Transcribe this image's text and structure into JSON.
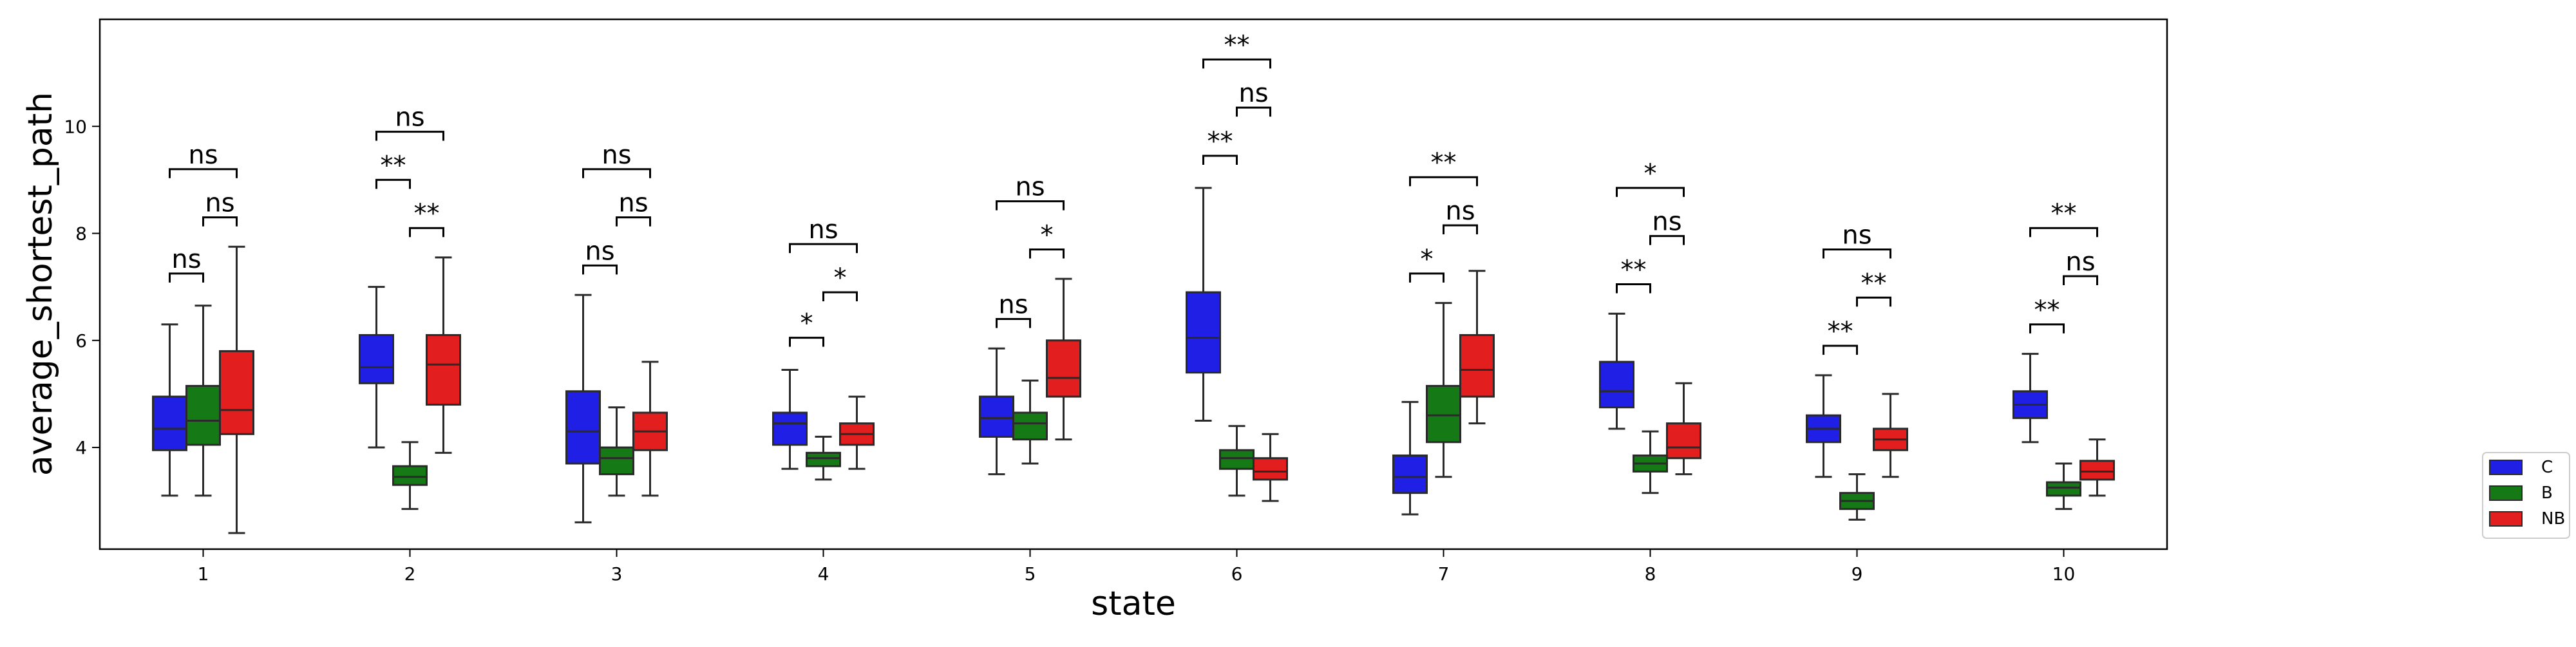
{
  "chart_data": {
    "type": "box",
    "xlabel": "state",
    "ylabel": "average_shortest_path",
    "categories": [
      "1",
      "2",
      "3",
      "4",
      "5",
      "6",
      "7",
      "8",
      "9",
      "10"
    ],
    "y_ticks": [
      4,
      6,
      8,
      10
    ],
    "ylim": [
      2.1,
      12.0
    ],
    "grid": false,
    "legend_position": "right, outside plot",
    "series": [
      {
        "name": "C",
        "color": "#1f1fe6"
      },
      {
        "name": "B",
        "color": "#157a15"
      },
      {
        "name": "NB",
        "color": "#e31e1e"
      }
    ],
    "groups": [
      {
        "state": "1",
        "boxes": [
          {
            "series": "C",
            "whislo": 3.1,
            "q1": 3.95,
            "med": 4.35,
            "q3": 4.95,
            "whishi": 6.3
          },
          {
            "series": "B",
            "whislo": 3.1,
            "q1": 4.05,
            "med": 4.5,
            "q3": 5.15,
            "whishi": 6.65
          },
          {
            "series": "NB",
            "whislo": 2.4,
            "q1": 4.25,
            "med": 4.7,
            "q3": 5.8,
            "whishi": 7.75
          }
        ],
        "annotations": [
          {
            "pair": [
              "C",
              "B"
            ],
            "label": "ns",
            "level": 7.25
          },
          {
            "pair": [
              "B",
              "NB"
            ],
            "label": "ns",
            "level": 8.3
          },
          {
            "pair": [
              "C",
              "NB"
            ],
            "label": "ns",
            "level": 9.2
          }
        ]
      },
      {
        "state": "2",
        "boxes": [
          {
            "series": "C",
            "whislo": 4.0,
            "q1": 5.2,
            "med": 5.5,
            "q3": 6.1,
            "whishi": 7.0
          },
          {
            "series": "B",
            "whislo": 2.85,
            "q1": 3.3,
            "med": 3.45,
            "q3": 3.65,
            "whishi": 4.1
          },
          {
            "series": "NB",
            "whislo": 3.9,
            "q1": 4.8,
            "med": 5.55,
            "q3": 6.1,
            "whishi": 7.55
          }
        ],
        "annotations": [
          {
            "pair": [
              "C",
              "B"
            ],
            "label": "**",
            "level": 9.0
          },
          {
            "pair": [
              "B",
              "NB"
            ],
            "label": "**",
            "level": 8.1
          },
          {
            "pair": [
              "C",
              "NB"
            ],
            "label": "ns",
            "level": 9.9
          }
        ]
      },
      {
        "state": "3",
        "boxes": [
          {
            "series": "C",
            "whislo": 2.6,
            "q1": 3.7,
            "med": 4.3,
            "q3": 5.05,
            "whishi": 6.85
          },
          {
            "series": "B",
            "whislo": 3.1,
            "q1": 3.5,
            "med": 3.8,
            "q3": 4.0,
            "whishi": 4.75
          },
          {
            "series": "NB",
            "whislo": 3.1,
            "q1": 3.95,
            "med": 4.3,
            "q3": 4.65,
            "whishi": 5.6
          }
        ],
        "annotations": [
          {
            "pair": [
              "C",
              "B"
            ],
            "label": "ns",
            "level": 7.4
          },
          {
            "pair": [
              "B",
              "NB"
            ],
            "label": "ns",
            "level": 8.3
          },
          {
            "pair": [
              "C",
              "NB"
            ],
            "label": "ns",
            "level": 9.2
          }
        ]
      },
      {
        "state": "4",
        "boxes": [
          {
            "series": "C",
            "whislo": 3.6,
            "q1": 4.05,
            "med": 4.45,
            "q3": 4.65,
            "whishi": 5.45
          },
          {
            "series": "B",
            "whislo": 3.4,
            "q1": 3.65,
            "med": 3.8,
            "q3": 3.9,
            "whishi": 4.2
          },
          {
            "series": "NB",
            "whislo": 3.6,
            "q1": 4.05,
            "med": 4.25,
            "q3": 4.45,
            "whishi": 4.95
          }
        ],
        "annotations": [
          {
            "pair": [
              "C",
              "B"
            ],
            "label": "*",
            "level": 6.05
          },
          {
            "pair": [
              "B",
              "NB"
            ],
            "label": "*",
            "level": 6.9
          },
          {
            "pair": [
              "C",
              "NB"
            ],
            "label": "ns",
            "level": 7.8
          }
        ]
      },
      {
        "state": "5",
        "boxes": [
          {
            "series": "C",
            "whislo": 3.5,
            "q1": 4.2,
            "med": 4.55,
            "q3": 4.95,
            "whishi": 5.85
          },
          {
            "series": "B",
            "whislo": 3.7,
            "q1": 4.15,
            "med": 4.45,
            "q3": 4.65,
            "whishi": 5.25
          },
          {
            "series": "NB",
            "whislo": 4.15,
            "q1": 4.95,
            "med": 5.3,
            "q3": 6.0,
            "whishi": 7.15
          }
        ],
        "annotations": [
          {
            "pair": [
              "C",
              "B"
            ],
            "label": "ns",
            "level": 6.4
          },
          {
            "pair": [
              "B",
              "NB"
            ],
            "label": "*",
            "level": 7.7
          },
          {
            "pair": [
              "C",
              "NB"
            ],
            "label": "ns",
            "level": 8.6
          }
        ]
      },
      {
        "state": "6",
        "boxes": [
          {
            "series": "C",
            "whislo": 4.5,
            "q1": 5.4,
            "med": 6.05,
            "q3": 6.9,
            "whishi": 8.85
          },
          {
            "series": "B",
            "whislo": 3.1,
            "q1": 3.6,
            "med": 3.8,
            "q3": 3.95,
            "whishi": 4.4
          },
          {
            "series": "NB",
            "whislo": 3.0,
            "q1": 3.4,
            "med": 3.55,
            "q3": 3.8,
            "whishi": 4.25
          }
        ],
        "annotations": [
          {
            "pair": [
              "C",
              "B"
            ],
            "label": "**",
            "level": 9.45
          },
          {
            "pair": [
              "B",
              "NB"
            ],
            "label": "ns",
            "level": 10.35
          },
          {
            "pair": [
              "C",
              "NB"
            ],
            "label": "**",
            "level": 11.25
          }
        ]
      },
      {
        "state": "7",
        "boxes": [
          {
            "series": "C",
            "whislo": 2.75,
            "q1": 3.15,
            "med": 3.45,
            "q3": 3.85,
            "whishi": 4.85
          },
          {
            "series": "B",
            "whislo": 3.45,
            "q1": 4.1,
            "med": 4.6,
            "q3": 5.15,
            "whishi": 6.7
          },
          {
            "series": "NB",
            "whislo": 4.45,
            "q1": 4.95,
            "med": 5.45,
            "q3": 6.1,
            "whishi": 7.3
          }
        ],
        "annotations": [
          {
            "pair": [
              "C",
              "B"
            ],
            "label": "*",
            "level": 7.25
          },
          {
            "pair": [
              "B",
              "NB"
            ],
            "label": "ns",
            "level": 8.15
          },
          {
            "pair": [
              "C",
              "NB"
            ],
            "label": "**",
            "level": 9.05
          }
        ]
      },
      {
        "state": "8",
        "boxes": [
          {
            "series": "C",
            "whislo": 4.35,
            "q1": 4.75,
            "med": 5.05,
            "q3": 5.6,
            "whishi": 6.5
          },
          {
            "series": "B",
            "whislo": 3.15,
            "q1": 3.55,
            "med": 3.7,
            "q3": 3.85,
            "whishi": 4.3
          },
          {
            "series": "NB",
            "whislo": 3.5,
            "q1": 3.8,
            "med": 4.0,
            "q3": 4.45,
            "whishi": 5.2
          }
        ],
        "annotations": [
          {
            "pair": [
              "C",
              "B"
            ],
            "label": "**",
            "level": 7.05
          },
          {
            "pair": [
              "B",
              "NB"
            ],
            "label": "ns",
            "level": 7.95
          },
          {
            "pair": [
              "C",
              "NB"
            ],
            "label": "*",
            "level": 8.85
          }
        ]
      },
      {
        "state": "9",
        "boxes": [
          {
            "series": "C",
            "whislo": 3.45,
            "q1": 4.1,
            "med": 4.35,
            "q3": 4.6,
            "whishi": 5.35
          },
          {
            "series": "B",
            "whislo": 2.65,
            "q1": 2.85,
            "med": 3.0,
            "q3": 3.15,
            "whishi": 3.5
          },
          {
            "series": "NB",
            "whislo": 3.45,
            "q1": 3.95,
            "med": 4.15,
            "q3": 4.35,
            "whishi": 5.0
          }
        ],
        "annotations": [
          {
            "pair": [
              "C",
              "B"
            ],
            "label": "**",
            "level": 5.9
          },
          {
            "pair": [
              "B",
              "NB"
            ],
            "label": "**",
            "level": 6.8
          },
          {
            "pair": [
              "C",
              "NB"
            ],
            "label": "ns",
            "level": 7.7
          }
        ]
      },
      {
        "state": "10",
        "boxes": [
          {
            "series": "C",
            "whislo": 4.1,
            "q1": 4.55,
            "med": 4.8,
            "q3": 5.05,
            "whishi": 5.75
          },
          {
            "series": "B",
            "whislo": 2.85,
            "q1": 3.1,
            "med": 3.25,
            "q3": 3.35,
            "whishi": 3.7
          },
          {
            "series": "NB",
            "whislo": 3.1,
            "q1": 3.4,
            "med": 3.55,
            "q3": 3.75,
            "whishi": 4.15
          }
        ],
        "annotations": [
          {
            "pair": [
              "C",
              "B"
            ],
            "label": "**",
            "level": 6.3
          },
          {
            "pair": [
              "B",
              "NB"
            ],
            "label": "ns",
            "level": 7.2
          },
          {
            "pair": [
              "C",
              "NB"
            ],
            "label": "**",
            "level": 8.1
          }
        ]
      }
    ]
  }
}
